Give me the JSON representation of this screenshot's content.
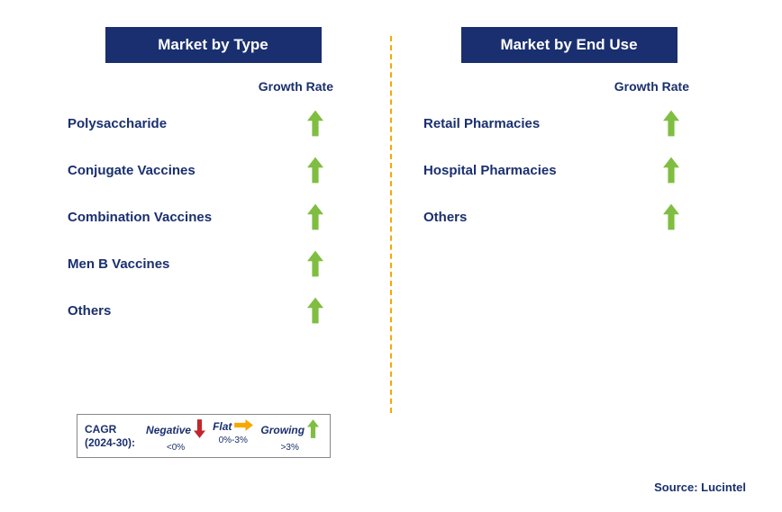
{
  "colors": {
    "header_bg": "#1a2f6f",
    "text": "#1a2f6f",
    "divider": "#f7a800",
    "grow": "#7fbe41",
    "flat": "#f7a800",
    "neg": "#c0272d"
  },
  "leftPanel": {
    "title": "Market by Type",
    "colHeader": "Growth Rate",
    "rows": [
      {
        "label": "Polysaccharide",
        "trend": "grow"
      },
      {
        "label": "Conjugate Vaccines",
        "trend": "grow"
      },
      {
        "label": "Combination Vaccines",
        "trend": "grow"
      },
      {
        "label": "Men B Vaccines",
        "trend": "grow"
      },
      {
        "label": "Others",
        "trend": "grow"
      }
    ]
  },
  "rightPanel": {
    "title": "Market by End Use",
    "colHeader": "Growth Rate",
    "rows": [
      {
        "label": "Retail Pharmacies",
        "trend": "grow"
      },
      {
        "label": "Hospital Pharmacies",
        "trend": "grow"
      },
      {
        "label": "Others",
        "trend": "grow"
      }
    ]
  },
  "legend": {
    "cagr_label": "CAGR",
    "cagr_period": "(2024-30):",
    "items": [
      {
        "label": "Negative",
        "range": "<0%",
        "arrow": "neg"
      },
      {
        "label": "Flat",
        "range": "0%-3%",
        "arrow": "flat"
      },
      {
        "label": "Growing",
        "range": ">3%",
        "arrow": "grow"
      }
    ]
  },
  "source": "Source: Lucintel"
}
